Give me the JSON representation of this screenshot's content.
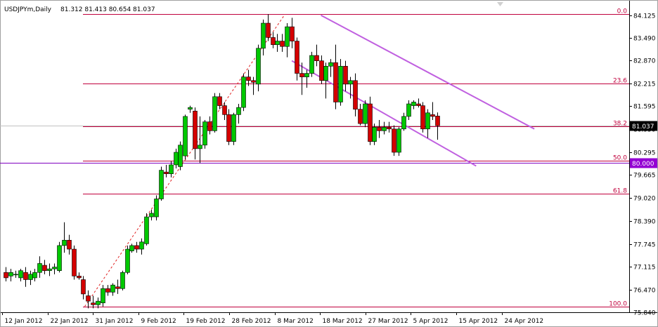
{
  "header": {
    "symbol": "USDJPYm,Daily",
    "ohlc": "81.312 81.413 80.654 81.037"
  },
  "colors": {
    "bull": "#00c800",
    "bear": "#d40000",
    "fib": "#c0003c",
    "channel": "#c060e0",
    "support": "#8000c0",
    "trend": "#e02020",
    "price_box": "#000000",
    "support_box": "#9400d3"
  },
  "chart_data": {
    "type": "candlestick",
    "symbol": "USDJPYm",
    "timeframe": "Daily",
    "ylim": [
      75.84,
      84.35
    ],
    "y_ticks": [
      84.125,
      83.49,
      82.87,
      82.215,
      81.595,
      80.95,
      80.295,
      79.665,
      79.02,
      78.39,
      77.745,
      77.115,
      76.47,
      75.84
    ],
    "x_ticks": [
      "12 Jan 2012",
      "22 Jan 2012",
      "31 Jan 2012",
      "9 Feb 2012",
      "19 Feb 2012",
      "28 Feb 2012",
      "8 Mar 2012",
      "18 Mar 2012",
      "27 Mar 2012",
      "5 Apr 2012",
      "15 Apr 2012",
      "24 Apr 2012"
    ],
    "fib_levels": [
      {
        "label": "0.0",
        "price": 84.15
      },
      {
        "label": "23.6",
        "price": 82.22
      },
      {
        "label": "38.2",
        "price": 81.02
      },
      {
        "label": "50.0",
        "price": 80.07
      },
      {
        "label": "61.8",
        "price": 79.14
      },
      {
        "label": "100.0",
        "price": 76.0
      }
    ],
    "current_price": "81.037",
    "support_price": "80.000",
    "support_value": 80.0,
    "channel_upper": [
      {
        "t": 65,
        "p": 84.12
      },
      {
        "t": 109,
        "p": 80.95
      }
    ],
    "channel_lower": [
      {
        "t": 59,
        "p": 82.85
      },
      {
        "t": 97,
        "p": 79.92
      }
    ],
    "trendline": [
      {
        "t": 16.3,
        "p": 76.0
      },
      {
        "t": 57.6,
        "p": 84.15
      }
    ],
    "candles": [
      {
        "o": 76.95,
        "h": 77.1,
        "l": 76.7,
        "c": 76.8
      },
      {
        "o": 76.85,
        "h": 77.05,
        "l": 76.7,
        "c": 76.95
      },
      {
        "o": 76.9,
        "h": 77.0,
        "l": 76.8,
        "c": 76.9
      },
      {
        "o": 76.8,
        "h": 77.05,
        "l": 76.7,
        "c": 77.0
      },
      {
        "o": 76.95,
        "h": 77.1,
        "l": 76.55,
        "c": 76.75
      },
      {
        "o": 76.75,
        "h": 77.0,
        "l": 76.6,
        "c": 76.9
      },
      {
        "o": 76.8,
        "h": 77.05,
        "l": 76.7,
        "c": 76.95
      },
      {
        "o": 76.95,
        "h": 77.4,
        "l": 76.8,
        "c": 77.2
      },
      {
        "o": 77.15,
        "h": 77.3,
        "l": 76.9,
        "c": 77.0
      },
      {
        "o": 77.0,
        "h": 77.2,
        "l": 76.85,
        "c": 77.05
      },
      {
        "o": 77.05,
        "h": 77.2,
        "l": 76.9,
        "c": 77.1
      },
      {
        "o": 77.0,
        "h": 77.8,
        "l": 76.95,
        "c": 77.7
      },
      {
        "o": 77.7,
        "h": 78.35,
        "l": 77.5,
        "c": 77.85
      },
      {
        "o": 77.85,
        "h": 78.0,
        "l": 77.45,
        "c": 77.6
      },
      {
        "o": 77.6,
        "h": 77.7,
        "l": 76.75,
        "c": 76.85
      },
      {
        "o": 76.85,
        "h": 76.95,
        "l": 76.75,
        "c": 76.8
      },
      {
        "o": 76.75,
        "h": 76.85,
        "l": 76.2,
        "c": 76.35
      },
      {
        "o": 76.3,
        "h": 76.45,
        "l": 75.95,
        "c": 76.15
      },
      {
        "o": 76.1,
        "h": 76.3,
        "l": 75.95,
        "c": 76.05
      },
      {
        "o": 76.05,
        "h": 76.25,
        "l": 75.95,
        "c": 76.15
      },
      {
        "o": 76.1,
        "h": 76.6,
        "l": 76.0,
        "c": 76.5
      },
      {
        "o": 76.5,
        "h": 76.6,
        "l": 76.3,
        "c": 76.4
      },
      {
        "o": 76.4,
        "h": 76.65,
        "l": 76.3,
        "c": 76.6
      },
      {
        "o": 76.55,
        "h": 76.75,
        "l": 76.35,
        "c": 76.5
      },
      {
        "o": 76.5,
        "h": 77.0,
        "l": 76.45,
        "c": 76.95
      },
      {
        "o": 76.95,
        "h": 77.7,
        "l": 76.9,
        "c": 77.6
      },
      {
        "o": 77.55,
        "h": 77.75,
        "l": 77.5,
        "c": 77.7
      },
      {
        "o": 77.7,
        "h": 77.8,
        "l": 77.5,
        "c": 77.6
      },
      {
        "o": 77.6,
        "h": 77.9,
        "l": 77.45,
        "c": 77.8
      },
      {
        "o": 77.75,
        "h": 78.6,
        "l": 77.7,
        "c": 78.5
      },
      {
        "o": 78.5,
        "h": 78.7,
        "l": 78.4,
        "c": 78.6
      },
      {
        "o": 78.5,
        "h": 79.1,
        "l": 78.4,
        "c": 79.0
      },
      {
        "o": 79.0,
        "h": 79.9,
        "l": 78.95,
        "c": 79.8
      },
      {
        "o": 79.75,
        "h": 79.95,
        "l": 79.6,
        "c": 79.7
      },
      {
        "o": 79.7,
        "h": 80.05,
        "l": 79.6,
        "c": 79.95
      },
      {
        "o": 79.95,
        "h": 80.4,
        "l": 79.85,
        "c": 80.3
      },
      {
        "o": 79.9,
        "h": 80.6,
        "l": 79.8,
        "c": 80.5
      },
      {
        "o": 80.2,
        "h": 81.35,
        "l": 80.1,
        "c": 81.3
      },
      {
        "o": 81.5,
        "h": 81.6,
        "l": 81.4,
        "c": 81.55
      },
      {
        "o": 81.45,
        "h": 81.55,
        "l": 80.1,
        "c": 80.4
      },
      {
        "o": 80.4,
        "h": 81.3,
        "l": 80.0,
        "c": 80.5
      },
      {
        "o": 80.5,
        "h": 81.2,
        "l": 80.4,
        "c": 81.15
      },
      {
        "o": 81.15,
        "h": 81.3,
        "l": 80.8,
        "c": 80.9
      },
      {
        "o": 80.9,
        "h": 81.95,
        "l": 80.85,
        "c": 81.85
      },
      {
        "o": 81.85,
        "h": 81.95,
        "l": 81.5,
        "c": 81.6
      },
      {
        "o": 81.6,
        "h": 81.7,
        "l": 81.2,
        "c": 81.35
      },
      {
        "o": 81.35,
        "h": 81.5,
        "l": 80.5,
        "c": 80.6
      },
      {
        "o": 80.6,
        "h": 81.4,
        "l": 80.5,
        "c": 81.35
      },
      {
        "o": 81.35,
        "h": 81.65,
        "l": 81.1,
        "c": 81.55
      },
      {
        "o": 81.55,
        "h": 82.5,
        "l": 81.45,
        "c": 82.4
      },
      {
        "o": 82.4,
        "h": 82.6,
        "l": 82.15,
        "c": 82.3
      },
      {
        "o": 82.3,
        "h": 82.4,
        "l": 81.9,
        "c": 82.25
      },
      {
        "o": 82.2,
        "h": 83.3,
        "l": 82.0,
        "c": 83.2
      },
      {
        "o": 83.2,
        "h": 84.0,
        "l": 83.0,
        "c": 83.9
      },
      {
        "o": 83.9,
        "h": 84.15,
        "l": 83.4,
        "c": 83.5
      },
      {
        "o": 83.5,
        "h": 83.65,
        "l": 83.2,
        "c": 83.3
      },
      {
        "o": 83.3,
        "h": 83.6,
        "l": 83.1,
        "c": 83.4
      },
      {
        "o": 83.4,
        "h": 83.6,
        "l": 83.1,
        "c": 83.25
      },
      {
        "o": 83.25,
        "h": 83.9,
        "l": 82.95,
        "c": 83.8
      },
      {
        "o": 83.8,
        "h": 84.05,
        "l": 83.2,
        "c": 83.4
      },
      {
        "o": 83.4,
        "h": 83.5,
        "l": 82.3,
        "c": 82.5
      },
      {
        "o": 82.5,
        "h": 82.8,
        "l": 81.9,
        "c": 82.4
      },
      {
        "o": 82.4,
        "h": 82.6,
        "l": 82.1,
        "c": 82.5
      },
      {
        "o": 82.5,
        "h": 83.1,
        "l": 82.4,
        "c": 83.0
      },
      {
        "o": 83.0,
        "h": 83.3,
        "l": 82.7,
        "c": 82.85
      },
      {
        "o": 82.85,
        "h": 83.0,
        "l": 82.2,
        "c": 82.3
      },
      {
        "o": 82.3,
        "h": 82.8,
        "l": 81.8,
        "c": 82.7
      },
      {
        "o": 82.7,
        "h": 82.9,
        "l": 82.4,
        "c": 82.8
      },
      {
        "o": 82.8,
        "h": 83.3,
        "l": 81.5,
        "c": 81.7
      },
      {
        "o": 81.7,
        "h": 82.9,
        "l": 81.6,
        "c": 82.7
      },
      {
        "o": 82.7,
        "h": 82.85,
        "l": 82.0,
        "c": 82.2
      },
      {
        "o": 82.2,
        "h": 82.4,
        "l": 81.8,
        "c": 82.3
      },
      {
        "o": 82.3,
        "h": 82.5,
        "l": 81.3,
        "c": 81.5
      },
      {
        "o": 81.5,
        "h": 81.65,
        "l": 81.05,
        "c": 81.1
      },
      {
        "o": 81.1,
        "h": 81.75,
        "l": 81.0,
        "c": 81.65
      },
      {
        "o": 81.65,
        "h": 81.85,
        "l": 80.5,
        "c": 80.6
      },
      {
        "o": 80.6,
        "h": 81.1,
        "l": 80.5,
        "c": 81.0
      },
      {
        "o": 81.0,
        "h": 81.2,
        "l": 80.7,
        "c": 80.9
      },
      {
        "o": 80.9,
        "h": 81.15,
        "l": 80.8,
        "c": 81.0
      },
      {
        "o": 81.0,
        "h": 81.15,
        "l": 80.85,
        "c": 80.95
      },
      {
        "o": 80.95,
        "h": 81.05,
        "l": 80.2,
        "c": 80.3
      },
      {
        "o": 80.3,
        "h": 81.0,
        "l": 80.2,
        "c": 80.95
      },
      {
        "o": 80.95,
        "h": 81.4,
        "l": 80.9,
        "c": 81.3
      },
      {
        "o": 81.3,
        "h": 81.75,
        "l": 81.2,
        "c": 81.65
      },
      {
        "o": 81.6,
        "h": 81.75,
        "l": 81.5,
        "c": 81.7
      },
      {
        "o": 81.65,
        "h": 81.8,
        "l": 81.55,
        "c": 81.6
      },
      {
        "o": 81.6,
        "h": 81.7,
        "l": 80.85,
        "c": 80.95
      },
      {
        "o": 80.95,
        "h": 81.5,
        "l": 80.7,
        "c": 81.4
      },
      {
        "o": 81.35,
        "h": 81.7,
        "l": 81.2,
        "c": 81.3
      },
      {
        "o": 81.31,
        "h": 81.41,
        "l": 80.65,
        "c": 81.04
      }
    ]
  }
}
